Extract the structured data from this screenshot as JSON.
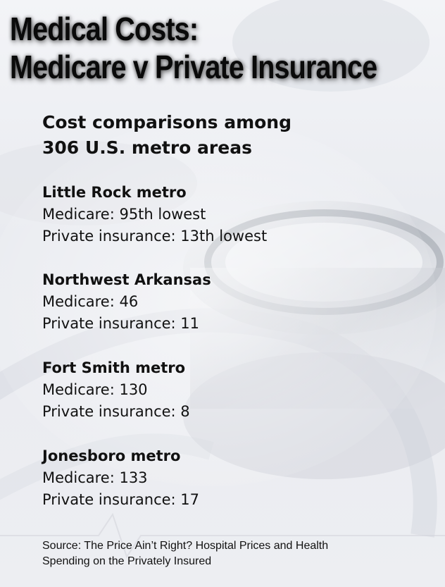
{
  "title": {
    "line1": "Medical Costs:",
    "line2": "Medicare v Private Insurance"
  },
  "subtitle": {
    "line1": "Cost comparisons among",
    "line2": "306 U.S. metro areas"
  },
  "metros": [
    {
      "name": "Little Rock metro",
      "medicare": "Medicare: 95th lowest",
      "private": "Private insurance: 13th lowest"
    },
    {
      "name": "Northwest Arkansas",
      "medicare": "Medicare: 46",
      "private": "Private insurance: 11"
    },
    {
      "name": "Fort Smith metro",
      "medicare": "Medicare: 130",
      "private": "Private insurance: 8"
    },
    {
      "name": "Jonesboro metro",
      "medicare": "Medicare: 133",
      "private": "Private insurance: 17"
    }
  ],
  "source": {
    "line1": "Source: The Price Ain’t Right? Hospital Prices and Health",
    "line2": "Spending on the Privately Insured"
  },
  "background": {
    "icon": "stethoscope-icon",
    "tint": "#e9ebf0"
  }
}
